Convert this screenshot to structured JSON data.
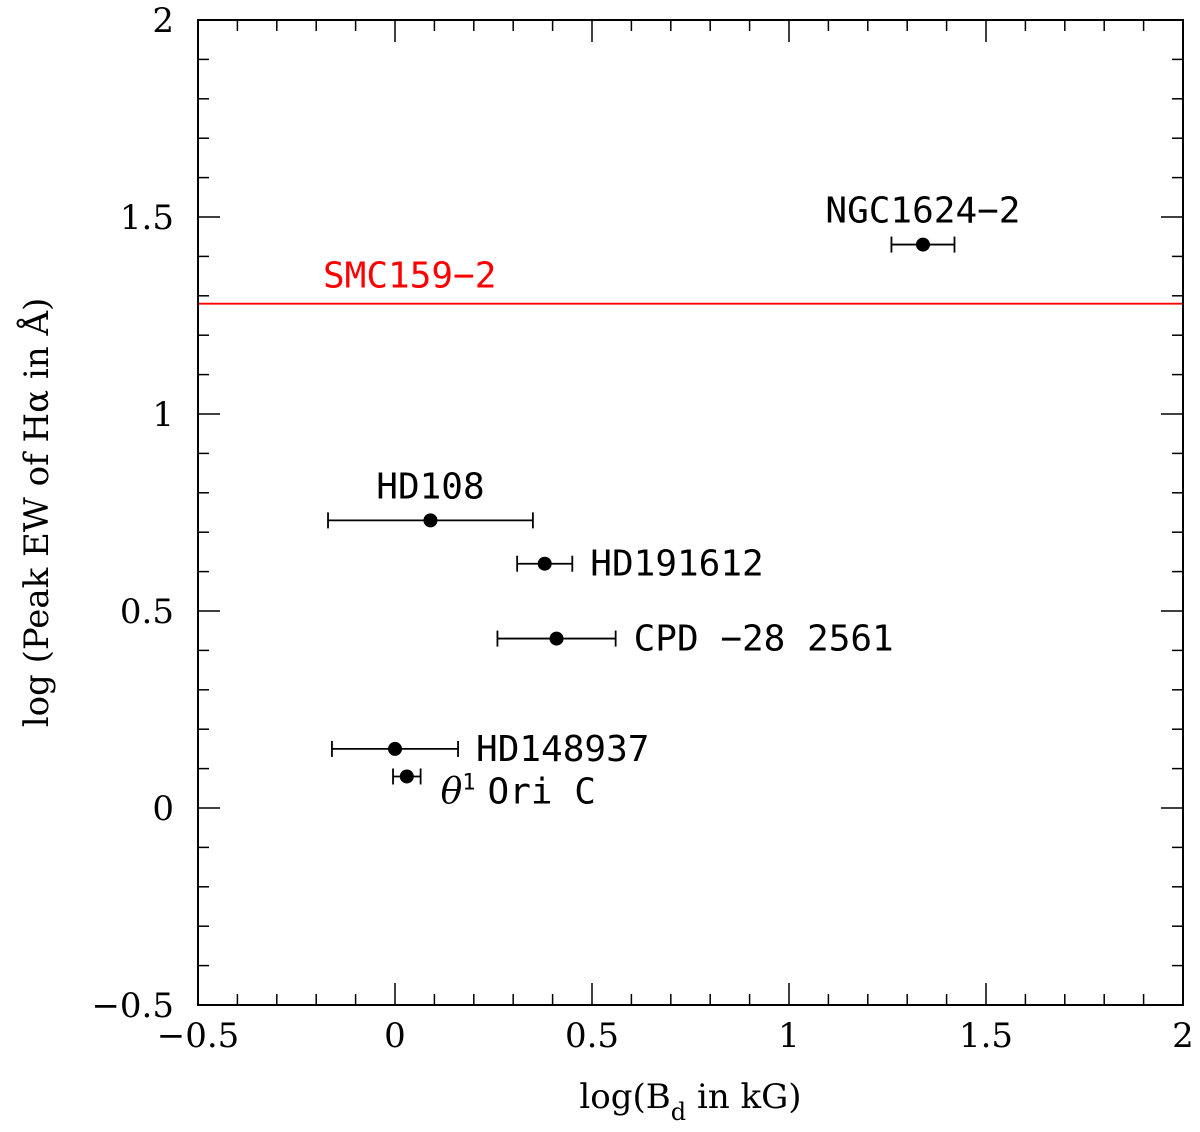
{
  "chart_data": {
    "type": "scatter",
    "title": "",
    "xlabel": "log(B",
    "xlabel_subscript": "d",
    "xlabel_suffix": " in kG)",
    "ylabel": "log (Peak EW of Hα in Å)",
    "xlim": [
      -0.5,
      2
    ],
    "ylim": [
      -0.5,
      2
    ],
    "x_ticks": [
      -0.5,
      0,
      0.5,
      1,
      1.5,
      2
    ],
    "x_tick_labels": [
      "−0.5",
      "0",
      "0.5",
      "1",
      "1.5",
      "2"
    ],
    "y_ticks": [
      -0.5,
      0,
      0.5,
      1,
      1.5,
      2
    ],
    "y_tick_labels": [
      "−0.5",
      "0",
      "0.5",
      "1",
      "1.5",
      "2"
    ],
    "grid": false,
    "points": [
      {
        "label": "NGC1624−2",
        "x": 1.34,
        "y": 1.43,
        "xerr_low": 0.08,
        "xerr_high": 0.08,
        "label_pos": "above"
      },
      {
        "label": "HD108",
        "x": 0.09,
        "y": 0.73,
        "xerr_low": 0.26,
        "xerr_high": 0.26,
        "label_pos": "above"
      },
      {
        "label": "HD191612",
        "x": 0.38,
        "y": 0.62,
        "xerr_low": 0.07,
        "xerr_high": 0.07,
        "label_pos": "right"
      },
      {
        "label": "CPD −28 2561",
        "x": 0.41,
        "y": 0.43,
        "xerr_low": 0.15,
        "xerr_high": 0.15,
        "label_pos": "right"
      },
      {
        "label": "HD148937",
        "x": 0.0,
        "y": 0.15,
        "xerr_low": 0.16,
        "xerr_high": 0.16,
        "label_pos": "right"
      },
      {
        "label": "Ori C",
        "label_prefix": "θ",
        "label_superscript": "1",
        "x": 0.03,
        "y": 0.08,
        "xerr_low": 0.035,
        "xerr_high": 0.035,
        "label_pos": "right-below"
      }
    ],
    "reference_lines": [
      {
        "label": "SMC159−2",
        "y": 1.28,
        "color": "#ff0000"
      }
    ]
  }
}
